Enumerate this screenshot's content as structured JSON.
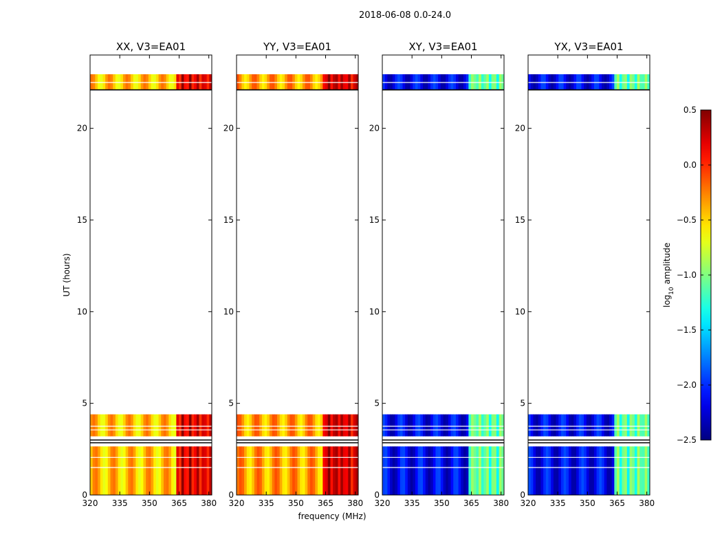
{
  "chart_data": {
    "type": "heatmap",
    "title": "2018-06-08 0.0-24.0",
    "xlabel": "frequency (MHz)",
    "ylabel": "UT (hours)",
    "xlim": [
      320,
      381.5
    ],
    "ylim": [
      0,
      24
    ],
    "xticks": [
      320,
      335,
      350,
      365,
      380
    ],
    "xtick_labels": [
      "320",
      "335",
      "350",
      "365",
      "380"
    ],
    "yticks": [
      0,
      5,
      10,
      15,
      20
    ],
    "ytick_labels": [
      "0",
      "5",
      "10",
      "15",
      "20"
    ],
    "time_blocks_hours": [
      {
        "start": 0.0,
        "end": 2.65
      },
      {
        "start": 3.2,
        "end": 4.4
      },
      {
        "start": 22.1,
        "end": 22.95
      }
    ],
    "flag_lines_hours": [
      1.5,
      2.05,
      2.85,
      3.0,
      3.55,
      3.75,
      22.1,
      22.5,
      23.0,
      23.2
    ],
    "rfi_band_mhz": [
      363.5,
      381.5
    ],
    "colorbar": {
      "label": "log10 amplitude",
      "label_main": "log",
      "label_sub": "10",
      "label_rest": " amplitude",
      "range": [
        -2.5,
        0.5
      ],
      "ticks": [
        0.5,
        0.0,
        -0.5,
        -1.0,
        -1.5,
        -2.0,
        -2.5
      ],
      "tick_labels": [
        "0.5",
        "0.0",
        "−0.5",
        "−1.0",
        "−1.5",
        "−2.0",
        "−2.5"
      ]
    },
    "panels": [
      {
        "title": "XX, V3=EA01",
        "pol": "XX",
        "base_level": -0.45,
        "rfi_level": 0.15,
        "show_ylabel": true,
        "show_xlabel": false
      },
      {
        "title": "YY, V3=EA01",
        "pol": "YY",
        "base_level": -0.35,
        "rfi_level": 0.25,
        "show_ylabel": false,
        "show_xlabel": true
      },
      {
        "title": "XY, V3=EA01",
        "pol": "XY",
        "base_level": -2.15,
        "rfi_level": -1.05,
        "show_ylabel": false,
        "show_xlabel": false
      },
      {
        "title": "YX, V3=EA01",
        "pol": "YX",
        "base_level": -2.15,
        "rfi_level": -1.05,
        "show_ylabel": false,
        "show_xlabel": false
      }
    ]
  }
}
